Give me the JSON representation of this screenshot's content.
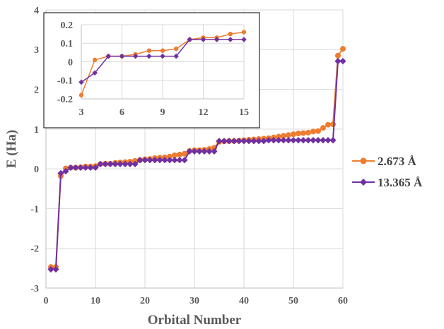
{
  "chart_data": [
    {
      "type": "line",
      "xlabel": "Orbital Number",
      "ylabel": "E (Ha)",
      "xlim": [
        0,
        60
      ],
      "ylim": [
        -3,
        4
      ],
      "xticks": [
        "0",
        "10",
        "20",
        "30",
        "40",
        "50",
        "60"
      ],
      "yticks": [
        "-3",
        "-2",
        "-1",
        "0",
        "1",
        "2",
        "3",
        "4"
      ],
      "grid": true,
      "legend": "right",
      "series": [
        {
          "name": "2.673 Å",
          "color": "#ED7D31",
          "marker": "circle",
          "x": [
            1,
            2,
            3,
            4,
            5,
            6,
            7,
            8,
            9,
            10,
            11,
            12,
            13,
            14,
            15,
            16,
            17,
            18,
            19,
            20,
            21,
            22,
            23,
            24,
            25,
            26,
            27,
            28,
            29,
            30,
            31,
            32,
            33,
            34,
            35,
            36,
            37,
            38,
            39,
            40,
            41,
            42,
            43,
            44,
            45,
            46,
            47,
            48,
            49,
            50,
            51,
            52,
            53,
            54,
            55,
            56,
            57,
            58,
            59,
            60
          ],
          "values": [
            -2.47,
            -2.47,
            -0.18,
            0.01,
            0.03,
            0.03,
            0.04,
            0.06,
            0.06,
            0.07,
            0.12,
            0.13,
            0.13,
            0.15,
            0.16,
            0.17,
            0.18,
            0.2,
            0.22,
            0.24,
            0.25,
            0.27,
            0.28,
            0.29,
            0.31,
            0.34,
            0.36,
            0.38,
            0.45,
            0.47,
            0.47,
            0.48,
            0.5,
            0.53,
            0.68,
            0.69,
            0.7,
            0.7,
            0.71,
            0.72,
            0.73,
            0.74,
            0.75,
            0.76,
            0.77,
            0.79,
            0.81,
            0.83,
            0.85,
            0.87,
            0.89,
            0.9,
            0.91,
            0.94,
            0.95,
            1.03,
            1.11,
            1.12,
            2.85,
            3.02
          ]
        },
        {
          "name": "13.365 Å",
          "color": "#7030A0",
          "marker": "diamond",
          "x": [
            1,
            2,
            3,
            4,
            5,
            6,
            7,
            8,
            9,
            10,
            11,
            12,
            13,
            14,
            15,
            16,
            17,
            18,
            19,
            20,
            21,
            22,
            23,
            24,
            25,
            26,
            27,
            28,
            29,
            30,
            31,
            32,
            33,
            34,
            35,
            36,
            37,
            38,
            39,
            40,
            41,
            42,
            43,
            44,
            45,
            46,
            47,
            48,
            49,
            50,
            51,
            52,
            53,
            54,
            55,
            56,
            57,
            58,
            59,
            60
          ],
          "values": [
            -2.53,
            -2.53,
            -0.11,
            -0.06,
            0.03,
            0.03,
            0.03,
            0.03,
            0.03,
            0.03,
            0.12,
            0.12,
            0.12,
            0.12,
            0.12,
            0.12,
            0.12,
            0.12,
            0.22,
            0.22,
            0.22,
            0.22,
            0.22,
            0.22,
            0.22,
            0.22,
            0.22,
            0.22,
            0.44,
            0.44,
            0.44,
            0.44,
            0.44,
            0.44,
            0.7,
            0.7,
            0.7,
            0.7,
            0.7,
            0.7,
            0.7,
            0.7,
            0.7,
            0.7,
            0.72,
            0.72,
            0.72,
            0.72,
            0.72,
            0.72,
            0.72,
            0.72,
            0.72,
            0.72,
            0.72,
            0.72,
            0.72,
            0.72,
            2.71,
            2.71
          ]
        }
      ]
    },
    {
      "type": "line",
      "xlim": [
        3,
        15
      ],
      "ylim": [
        -0.2,
        0.2
      ],
      "xticks": [
        "3",
        "6",
        "9",
        "12",
        "15"
      ],
      "yticks": [
        "-0.2",
        "-0.1",
        "0",
        "0.1",
        "0.2"
      ],
      "grid": true,
      "series": [
        {
          "name": "2.673 Å",
          "color": "#ED7D31",
          "marker": "circle",
          "x": [
            3,
            4,
            5,
            6,
            7,
            8,
            9,
            10,
            11,
            12,
            13,
            14,
            15
          ],
          "values": [
            -0.18,
            0.01,
            0.03,
            0.03,
            0.04,
            0.06,
            0.06,
            0.07,
            0.12,
            0.13,
            0.13,
            0.15,
            0.16
          ]
        },
        {
          "name": "13.365 Å",
          "color": "#7030A0",
          "marker": "diamond",
          "x": [
            3,
            4,
            5,
            6,
            7,
            8,
            9,
            10,
            11,
            12,
            13,
            14,
            15
          ],
          "values": [
            -0.11,
            -0.06,
            0.03,
            0.03,
            0.03,
            0.03,
            0.03,
            0.03,
            0.12,
            0.12,
            0.12,
            0.12,
            0.12
          ]
        }
      ]
    }
  ]
}
